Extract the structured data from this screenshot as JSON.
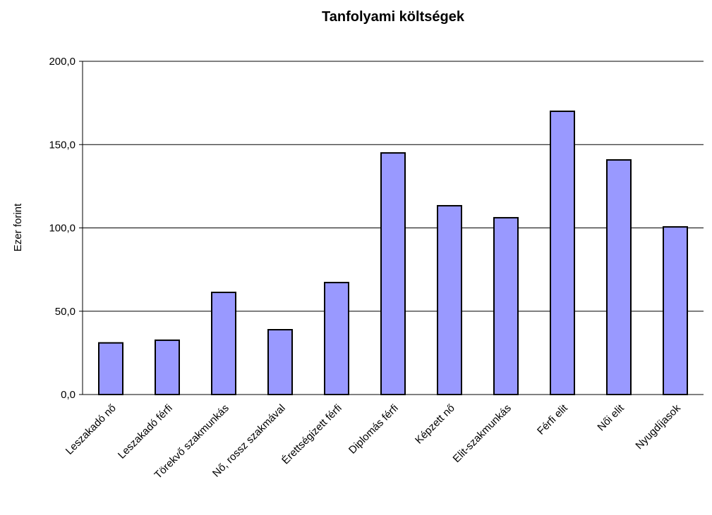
{
  "chart_data": {
    "type": "bar",
    "title": "Tanfolyami költségek",
    "y_label": "Ezer forint",
    "categories": [
      "Leszakadó nő",
      "Leszakadó férfi",
      "Törekvő szakmunkás",
      "Nő, rossz szakmával",
      "Érettségizett férfi",
      "Diplomás férfi",
      "Képzett nő",
      "Elit-szakmunkás",
      "Férfi elit",
      "Női elit",
      "Nyugdíjasok"
    ],
    "values": [
      31,
      32.6,
      61.3,
      38.9,
      67.2,
      145,
      113.3,
      106.1,
      170,
      140.8,
      100.6
    ],
    "color": "#9999ff",
    "ylim": [
      0,
      200
    ],
    "yticks": [
      {
        "value": 0,
        "label": "0,0"
      },
      {
        "value": 50,
        "label": "50,0"
      },
      {
        "value": 100,
        "label": "100,0"
      },
      {
        "value": 150,
        "label": "150,0"
      },
      {
        "value": 200,
        "label": "200,0"
      }
    ],
    "grid": true
  }
}
